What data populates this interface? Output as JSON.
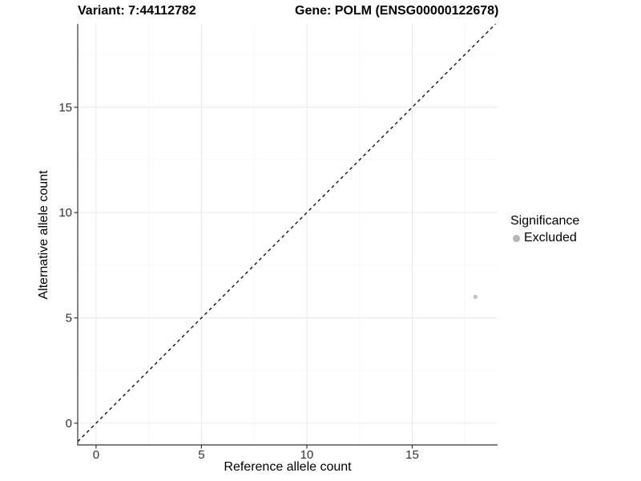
{
  "chart_data": {
    "type": "scatter",
    "title_left": "Variant: 7:44112782",
    "title_right": "Gene: POLM (ENSG00000122678)",
    "xlabel": "Reference allele count",
    "ylabel": "Alternative allele count",
    "xlim": [
      -0.87,
      19.05
    ],
    "ylim": [
      -1.03,
      18.95
    ],
    "x_ticks": [
      0,
      5,
      10,
      15
    ],
    "y_ticks": [
      0,
      5,
      10,
      15
    ],
    "x_minor_ticks": [
      2.5,
      7.5,
      12.5,
      17.5
    ],
    "y_minor_ticks": [
      2.5,
      7.5,
      12.5,
      17.5
    ],
    "grid": true,
    "identity_line": {
      "type": "dashed",
      "slope": 1,
      "intercept": 0,
      "color": "#000000"
    },
    "series": [
      {
        "name": "Excluded",
        "color": "#c4c4c4",
        "points": [
          {
            "x": 18,
            "y": 6
          }
        ]
      }
    ],
    "legend": {
      "position": "right",
      "title": "Significance",
      "entries": [
        {
          "label": "Excluded",
          "color": "#b5b5b5"
        }
      ]
    },
    "style": {
      "axis_color": "#333333",
      "tick_label_color": "#303030",
      "grid_major_color": "#e9e9e9",
      "grid_minor_color": "#f4f4f4",
      "background": "#ffffff"
    }
  }
}
